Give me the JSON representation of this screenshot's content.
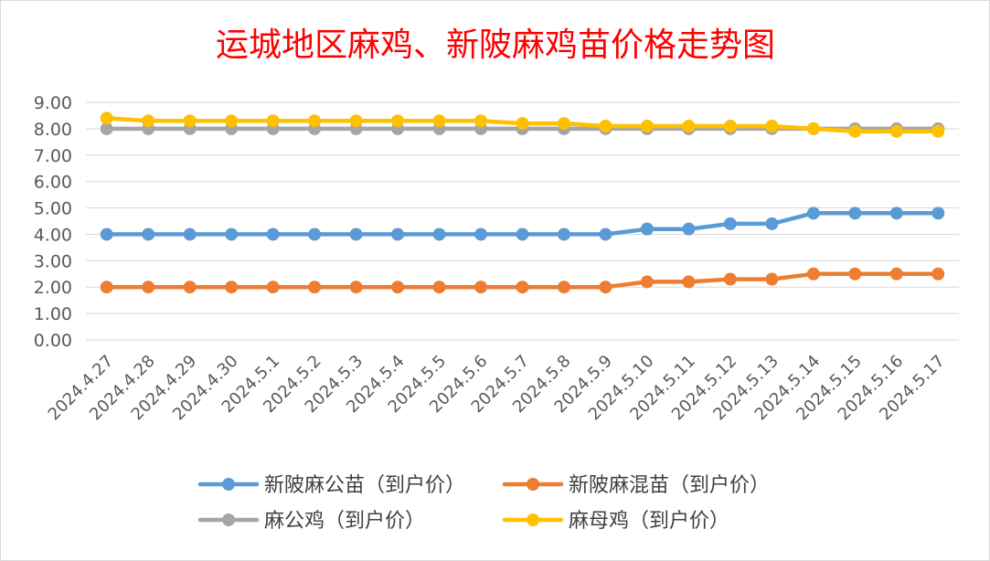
{
  "chart_data": {
    "type": "line",
    "title": "运城地区麻鸡、新陂麻鸡苗价格走势图",
    "xlabel": "",
    "ylabel": "",
    "ylim": [
      0,
      9
    ],
    "ytick_step": 1,
    "ytick_decimals": 2,
    "grid": true,
    "legend_position": "bottom",
    "categories": [
      "2024.4.27",
      "2024.4.28",
      "2024.4.29",
      "2024.4.30",
      "2024.5.1",
      "2024.5.2",
      "2024.5.3",
      "2024.5.4",
      "2024.5.5",
      "2024.5.6",
      "2024.5.7",
      "2024.5.8",
      "2024.5.9",
      "2024.5.10",
      "2024.5.11",
      "2024.5.12",
      "2024.5.13",
      "2024.5.14",
      "2024.5.15",
      "2024.5.16",
      "2024.5.17"
    ],
    "series": [
      {
        "name": "新陂麻公苗（到户价）",
        "color": "#5b9bd5",
        "values": [
          4.0,
          4.0,
          4.0,
          4.0,
          4.0,
          4.0,
          4.0,
          4.0,
          4.0,
          4.0,
          4.0,
          4.0,
          4.0,
          4.2,
          4.2,
          4.4,
          4.4,
          4.8,
          4.8,
          4.8,
          4.8
        ]
      },
      {
        "name": "新陂麻混苗（到户价）",
        "color": "#ed7d31",
        "values": [
          2.0,
          2.0,
          2.0,
          2.0,
          2.0,
          2.0,
          2.0,
          2.0,
          2.0,
          2.0,
          2.0,
          2.0,
          2.0,
          2.2,
          2.2,
          2.3,
          2.3,
          2.5,
          2.5,
          2.5,
          2.5
        ]
      },
      {
        "name": "麻公鸡（到户价）",
        "color": "#a5a5a5",
        "values": [
          8.0,
          8.0,
          8.0,
          8.0,
          8.0,
          8.0,
          8.0,
          8.0,
          8.0,
          8.0,
          8.0,
          8.0,
          8.0,
          8.0,
          8.0,
          8.0,
          8.0,
          8.0,
          8.0,
          8.0,
          8.0
        ]
      },
      {
        "name": "麻母鸡（到户价）",
        "color": "#ffc000",
        "values": [
          8.4,
          8.3,
          8.3,
          8.3,
          8.3,
          8.3,
          8.3,
          8.3,
          8.3,
          8.3,
          8.2,
          8.2,
          8.1,
          8.1,
          8.1,
          8.1,
          8.1,
          8.0,
          7.9,
          7.9,
          7.9
        ]
      }
    ],
    "colors": {
      "title": "#ff0000",
      "axis_text": "#595959",
      "gridline": "#d9d9d9",
      "legend_text": "#404040"
    }
  }
}
